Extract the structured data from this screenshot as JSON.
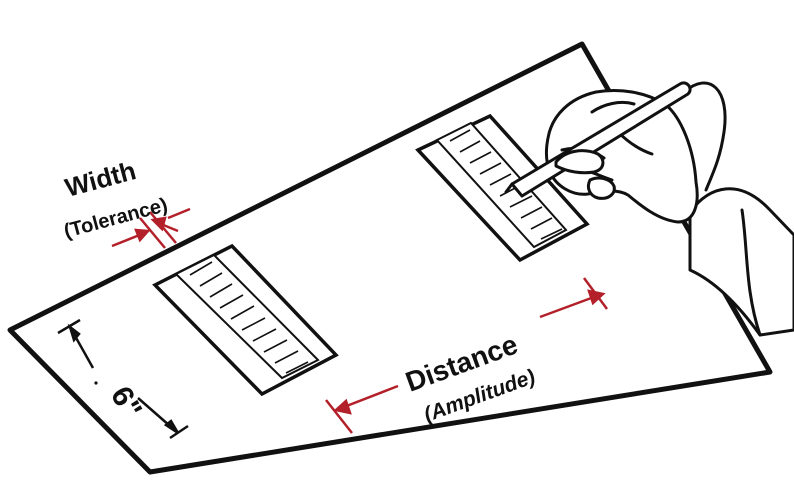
{
  "labels": {
    "width": "Width",
    "width_sub": "(Tolerance)",
    "distance": "Distance",
    "distance_sub": "(Amplitude)",
    "six_inch": "6\""
  },
  "colors": {
    "ink": "#111111",
    "arrow": "#b3202a",
    "paper": "#ffffff"
  },
  "icons": {
    "hand": "hand-holding-stylus-icon",
    "stylus": "stylus-icon"
  }
}
